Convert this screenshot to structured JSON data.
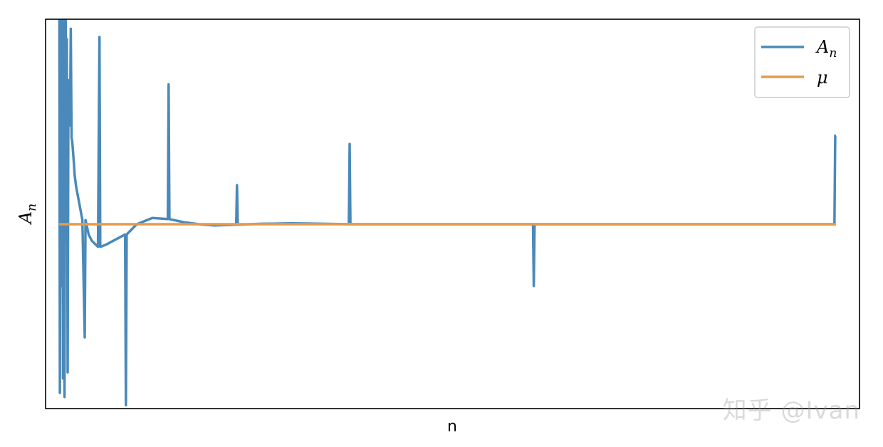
{
  "chart_data": {
    "type": "line",
    "xlabel": "n",
    "ylabel": "A",
    "ylabel_sub": "n",
    "xlim": [
      0,
      1000
    ],
    "ylim": [
      -1.0,
      1.0
    ],
    "grid": false,
    "ticks_visible": false,
    "legend_position": "top-right",
    "series": [
      {
        "name": "A",
        "name_sub": "n",
        "color": "#4a89b9",
        "points": [
          [
            0,
            2.0
          ],
          [
            1,
            -0.82
          ],
          [
            2,
            1.2
          ],
          [
            3,
            -0.3
          ],
          [
            4,
            1.1
          ],
          [
            5,
            -0.75
          ],
          [
            6,
            1.05
          ],
          [
            7,
            -0.84
          ],
          [
            8,
            1.15
          ],
          [
            9,
            0.8
          ],
          [
            10,
            0.9
          ],
          [
            11,
            -0.72
          ],
          [
            12,
            0.7
          ],
          [
            13,
            0.55
          ],
          [
            14,
            0.48
          ],
          [
            15,
            0.95
          ],
          [
            16,
            0.42
          ],
          [
            17,
            0.4
          ],
          [
            18,
            0.35
          ],
          [
            19,
            0.3
          ],
          [
            20,
            0.24
          ],
          [
            22,
            0.18
          ],
          [
            25,
            0.12
          ],
          [
            30,
            0.02
          ],
          [
            33,
            -0.55
          ],
          [
            34,
            0.02
          ],
          [
            38,
            -0.05
          ],
          [
            42,
            -0.08
          ],
          [
            50,
            -0.11
          ],
          [
            52,
            0.91
          ],
          [
            53,
            -0.11
          ],
          [
            60,
            -0.1
          ],
          [
            70,
            -0.08
          ],
          [
            85,
            -0.05
          ],
          [
            86,
            -0.88
          ],
          [
            87,
            -0.05
          ],
          [
            100,
            0.0
          ],
          [
            120,
            0.03
          ],
          [
            140,
            0.025
          ],
          [
            141,
            0.68
          ],
          [
            142,
            0.025
          ],
          [
            160,
            0.01
          ],
          [
            180,
            0.0
          ],
          [
            200,
            -0.006
          ],
          [
            228,
            -0.002
          ],
          [
            229,
            0.19
          ],
          [
            230,
            -0.002
          ],
          [
            260,
            0.002
          ],
          [
            300,
            0.004
          ],
          [
            340,
            0.002
          ],
          [
            373,
            0.0
          ],
          [
            374,
            0.39
          ],
          [
            375,
            0.0
          ],
          [
            420,
            0.0
          ],
          [
            500,
            0.0
          ],
          [
            610,
            0.0
          ],
          [
            611,
            -0.3
          ],
          [
            612,
            0.0
          ],
          [
            700,
            0.0
          ],
          [
            800,
            0.0
          ],
          [
            900,
            0.0
          ],
          [
            998,
            0.0
          ],
          [
            999,
            0.43
          ],
          [
            1000,
            0.43
          ]
        ]
      },
      {
        "name": "μ",
        "color": "#e69a4a",
        "points": [
          [
            0,
            0.0
          ],
          [
            1000,
            0.0
          ]
        ]
      }
    ]
  },
  "watermark": "知乎 @Ivan"
}
